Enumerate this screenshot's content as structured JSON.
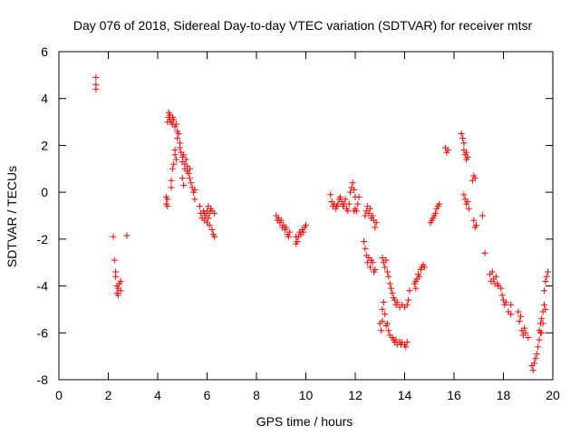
{
  "chart_data": {
    "type": "scatter",
    "title": "Day 076 of 2018, Sidereal Day-to-day VTEC variation (SDTVAR) for receiver mtsr",
    "xlabel": "GPS time / hours",
    "ylabel": "SDTVAR / TECUs",
    "xlim": [
      0,
      20
    ],
    "ylim": [
      -8,
      6
    ],
    "xticks": [
      0,
      2,
      4,
      6,
      8,
      10,
      12,
      14,
      16,
      18,
      20
    ],
    "yticks": [
      -8,
      -6,
      -4,
      -2,
      0,
      2,
      4,
      6
    ],
    "grid": false,
    "marker": "+",
    "color": "#ff0000",
    "series": [
      {
        "name": "SDTVAR",
        "points": [
          [
            1.5,
            4.9
          ],
          [
            1.5,
            4.6
          ],
          [
            1.5,
            4.4
          ],
          [
            2.2,
            -1.9
          ],
          [
            2.25,
            -2.9
          ],
          [
            2.3,
            -3.4
          ],
          [
            2.3,
            -3.6
          ],
          [
            2.35,
            -4.0
          ],
          [
            2.35,
            -4.3
          ],
          [
            2.4,
            -4.4
          ],
          [
            2.4,
            -4.1
          ],
          [
            2.45,
            -3.9
          ],
          [
            2.5,
            -4.2
          ],
          [
            2.5,
            -3.8
          ],
          [
            2.75,
            -1.85
          ],
          [
            4.35,
            -0.2
          ],
          [
            4.35,
            -0.5
          ],
          [
            4.4,
            -0.3
          ],
          [
            4.4,
            -0.6
          ],
          [
            4.4,
            3.0
          ],
          [
            4.45,
            3.2
          ],
          [
            4.45,
            3.4
          ],
          [
            4.5,
            3.1
          ],
          [
            4.5,
            3.3
          ],
          [
            4.55,
            3.0
          ],
          [
            4.6,
            3.2
          ],
          [
            4.6,
            2.9
          ],
          [
            4.65,
            3.1
          ],
          [
            4.7,
            2.8
          ],
          [
            4.75,
            2.9
          ],
          [
            4.8,
            2.6
          ],
          [
            4.8,
            2.3
          ],
          [
            4.85,
            2.5
          ],
          [
            4.9,
            2.1
          ],
          [
            4.9,
            1.9
          ],
          [
            4.6,
            1.0
          ],
          [
            4.65,
            1.2
          ],
          [
            4.7,
            1.6
          ],
          [
            4.7,
            1.8
          ],
          [
            4.75,
            1.4
          ],
          [
            4.55,
            0.5
          ],
          [
            4.55,
            0.2
          ],
          [
            4.95,
            1.7
          ],
          [
            5.0,
            1.5
          ],
          [
            5.0,
            1.3
          ],
          [
            5.05,
            1.6
          ],
          [
            5.1,
            1.2
          ],
          [
            5.1,
            1.0
          ],
          [
            5.15,
            1.4
          ],
          [
            5.2,
            0.9
          ],
          [
            5.2,
            1.1
          ],
          [
            5.25,
            0.8
          ],
          [
            5.3,
            0.6
          ],
          [
            5.3,
            1.0
          ],
          [
            5.35,
            0.4
          ],
          [
            5.0,
            0.6
          ],
          [
            5.05,
            0.3
          ],
          [
            5.4,
            0.2
          ],
          [
            5.45,
            0.0
          ],
          [
            5.5,
            -0.3
          ],
          [
            5.5,
            0.1
          ],
          [
            5.7,
            -0.6
          ],
          [
            5.75,
            -0.9
          ],
          [
            5.8,
            -1.1
          ],
          [
            5.85,
            -0.8
          ],
          [
            5.9,
            -1.2
          ],
          [
            5.9,
            -0.9
          ],
          [
            5.95,
            -1.0
          ],
          [
            6.0,
            -1.3
          ],
          [
            6.0,
            -0.8
          ],
          [
            6.05,
            -1.1
          ],
          [
            6.1,
            -1.4
          ],
          [
            6.1,
            -0.9
          ],
          [
            6.15,
            -0.7
          ],
          [
            6.2,
            -0.8
          ],
          [
            6.2,
            -1.6
          ],
          [
            6.25,
            -1.8
          ],
          [
            6.3,
            -1.9
          ],
          [
            6.3,
            -0.9
          ],
          [
            6.05,
            -0.6
          ],
          [
            8.8,
            -1.0
          ],
          [
            8.85,
            -1.2
          ],
          [
            8.9,
            -1.1
          ],
          [
            8.95,
            -1.3
          ],
          [
            9.0,
            -1.2
          ],
          [
            9.05,
            -1.5
          ],
          [
            9.1,
            -1.4
          ],
          [
            9.15,
            -1.6
          ],
          [
            9.2,
            -1.5
          ],
          [
            9.25,
            -1.8
          ],
          [
            9.3,
            -1.9
          ],
          [
            9.35,
            -1.7
          ],
          [
            9.6,
            -1.9
          ],
          [
            9.6,
            -2.2
          ],
          [
            9.65,
            -2.1
          ],
          [
            9.7,
            -1.9
          ],
          [
            9.75,
            -1.7
          ],
          [
            9.8,
            -1.8
          ],
          [
            9.85,
            -1.6
          ],
          [
            9.9,
            -1.7
          ],
          [
            9.95,
            -1.5
          ],
          [
            10.0,
            -1.4
          ],
          [
            11.0,
            -0.1
          ],
          [
            11.05,
            -0.4
          ],
          [
            11.1,
            -0.6
          ],
          [
            11.15,
            -0.5
          ],
          [
            11.2,
            -0.7
          ],
          [
            11.25,
            -0.6
          ],
          [
            11.3,
            -0.5
          ],
          [
            11.35,
            -0.3
          ],
          [
            11.4,
            -0.2
          ],
          [
            11.45,
            -0.4
          ],
          [
            11.5,
            -0.6
          ],
          [
            11.55,
            -0.5
          ],
          [
            11.6,
            -0.3
          ],
          [
            11.65,
            -0.7
          ],
          [
            11.7,
            -0.8
          ],
          [
            11.75,
            -0.5
          ],
          [
            11.8,
            0.0
          ],
          [
            11.85,
            0.2
          ],
          [
            11.9,
            0.4
          ],
          [
            11.95,
            0.1
          ],
          [
            12.0,
            -0.2
          ],
          [
            12.0,
            -0.7
          ],
          [
            12.05,
            -0.8
          ],
          [
            12.1,
            -0.5
          ],
          [
            12.15,
            -0.2
          ],
          [
            11.95,
            -0.8
          ],
          [
            12.35,
            -2.1
          ],
          [
            12.4,
            -2.4
          ],
          [
            12.45,
            -2.7
          ],
          [
            12.5,
            -3.0
          ],
          [
            12.55,
            -2.8
          ],
          [
            12.6,
            -3.2
          ],
          [
            12.65,
            -2.9
          ],
          [
            12.7,
            -3.0
          ],
          [
            12.75,
            -3.4
          ],
          [
            12.8,
            -3.3
          ],
          [
            12.4,
            -1.0
          ],
          [
            12.45,
            -0.8
          ],
          [
            12.5,
            -0.6
          ],
          [
            12.55,
            -0.9
          ],
          [
            12.6,
            -0.7
          ],
          [
            12.65,
            -1.1
          ],
          [
            12.7,
            -1.0
          ],
          [
            12.75,
            -1.2
          ],
          [
            12.8,
            -1.5
          ],
          [
            12.85,
            -1.3
          ],
          [
            13.0,
            -5.6
          ],
          [
            13.05,
            -5.9
          ],
          [
            13.1,
            -5.5
          ],
          [
            13.1,
            -5.0
          ],
          [
            13.15,
            -4.7
          ],
          [
            13.2,
            -5.2
          ],
          [
            13.25,
            -5.7
          ],
          [
            13.3,
            -5.6
          ],
          [
            13.35,
            -5.9
          ],
          [
            13.4,
            -6.1
          ],
          [
            13.5,
            -6.2
          ],
          [
            13.55,
            -6.3
          ],
          [
            13.6,
            -6.4
          ],
          [
            13.65,
            -6.3
          ],
          [
            13.7,
            -6.5
          ],
          [
            13.8,
            -6.4
          ],
          [
            13.85,
            -6.5
          ],
          [
            13.9,
            -6.4
          ],
          [
            14.0,
            -6.5
          ],
          [
            14.05,
            -6.6
          ],
          [
            14.1,
            -6.4
          ],
          [
            13.1,
            -2.8
          ],
          [
            13.15,
            -3.0
          ],
          [
            13.2,
            -3.2
          ],
          [
            13.25,
            -2.9
          ],
          [
            13.3,
            -3.4
          ],
          [
            13.35,
            -3.6
          ],
          [
            13.4,
            -3.9
          ],
          [
            13.45,
            -4.1
          ],
          [
            13.5,
            -4.3
          ],
          [
            13.55,
            -4.5
          ],
          [
            13.6,
            -4.6
          ],
          [
            13.65,
            -4.8
          ],
          [
            13.7,
            -4.7
          ],
          [
            13.8,
            -4.9
          ],
          [
            13.9,
            -4.8
          ],
          [
            14.0,
            -4.9
          ],
          [
            14.1,
            -4.8
          ],
          [
            14.15,
            -4.6
          ],
          [
            14.2,
            -4.2
          ],
          [
            14.4,
            -3.9
          ],
          [
            14.45,
            -4.1
          ],
          [
            14.5,
            -3.7
          ],
          [
            14.55,
            -3.5
          ],
          [
            14.6,
            -3.6
          ],
          [
            14.65,
            -3.3
          ],
          [
            14.7,
            -3.2
          ],
          [
            14.75,
            -3.1
          ],
          [
            14.8,
            -3.2
          ],
          [
            14.45,
            -3.8
          ],
          [
            15.05,
            -1.3
          ],
          [
            15.1,
            -1.2
          ],
          [
            15.15,
            -1.1
          ],
          [
            15.2,
            -1.0
          ],
          [
            15.25,
            -0.9
          ],
          [
            15.3,
            -0.7
          ],
          [
            15.35,
            -0.6
          ],
          [
            15.4,
            -0.5
          ],
          [
            15.65,
            1.9
          ],
          [
            15.7,
            1.7
          ],
          [
            15.75,
            1.8
          ],
          [
            16.3,
            2.5
          ],
          [
            16.35,
            2.3
          ],
          [
            16.4,
            2.1
          ],
          [
            16.4,
            1.8
          ],
          [
            16.45,
            1.6
          ],
          [
            16.5,
            1.7
          ],
          [
            16.5,
            1.4
          ],
          [
            16.55,
            1.5
          ],
          [
            16.4,
            -0.1
          ],
          [
            16.45,
            -0.3
          ],
          [
            16.5,
            -0.5
          ],
          [
            16.55,
            -0.4
          ],
          [
            16.6,
            -0.7
          ],
          [
            16.8,
            -1.2
          ],
          [
            16.85,
            -1.5
          ],
          [
            16.9,
            -1.4
          ],
          [
            16.75,
            0.5
          ],
          [
            16.8,
            0.7
          ],
          [
            16.85,
            0.6
          ],
          [
            17.15,
            -1.0
          ],
          [
            17.25,
            -2.6
          ],
          [
            17.45,
            -3.5
          ],
          [
            17.5,
            -3.8
          ],
          [
            17.55,
            -3.4
          ],
          [
            17.6,
            -3.7
          ],
          [
            17.65,
            -3.9
          ],
          [
            17.7,
            -3.6
          ],
          [
            17.75,
            -3.9
          ],
          [
            17.8,
            -4.0
          ],
          [
            17.9,
            -4.1
          ],
          [
            17.95,
            -4.4
          ],
          [
            18.0,
            -4.6
          ],
          [
            18.05,
            -4.8
          ],
          [
            18.1,
            -4.7
          ],
          [
            18.2,
            -5.1
          ],
          [
            18.3,
            -5.2
          ],
          [
            18.3,
            -4.8
          ],
          [
            18.6,
            -5.1
          ],
          [
            18.65,
            -5.5
          ],
          [
            18.7,
            -5.3
          ],
          [
            18.75,
            -5.9
          ],
          [
            18.8,
            -6.1
          ],
          [
            18.85,
            -5.8
          ],
          [
            18.9,
            -6.0
          ],
          [
            19.0,
            -6.2
          ],
          [
            19.15,
            -7.4
          ],
          [
            19.2,
            -7.6
          ],
          [
            19.25,
            -7.3
          ],
          [
            19.3,
            -7.1
          ],
          [
            19.35,
            -6.9
          ],
          [
            19.4,
            -6.6
          ],
          [
            19.45,
            -6.3
          ],
          [
            19.5,
            -6.0
          ],
          [
            19.5,
            -5.6
          ],
          [
            19.55,
            -5.4
          ],
          [
            19.6,
            -5.1
          ],
          [
            19.65,
            -4.8
          ],
          [
            19.6,
            -5.6
          ],
          [
            19.7,
            -5.0
          ],
          [
            19.65,
            -4.2
          ],
          [
            19.7,
            -3.8
          ],
          [
            19.75,
            -3.6
          ],
          [
            19.8,
            -3.4
          ],
          [
            19.45,
            -5.9
          ],
          [
            19.55,
            -6.0
          ]
        ]
      }
    ]
  }
}
